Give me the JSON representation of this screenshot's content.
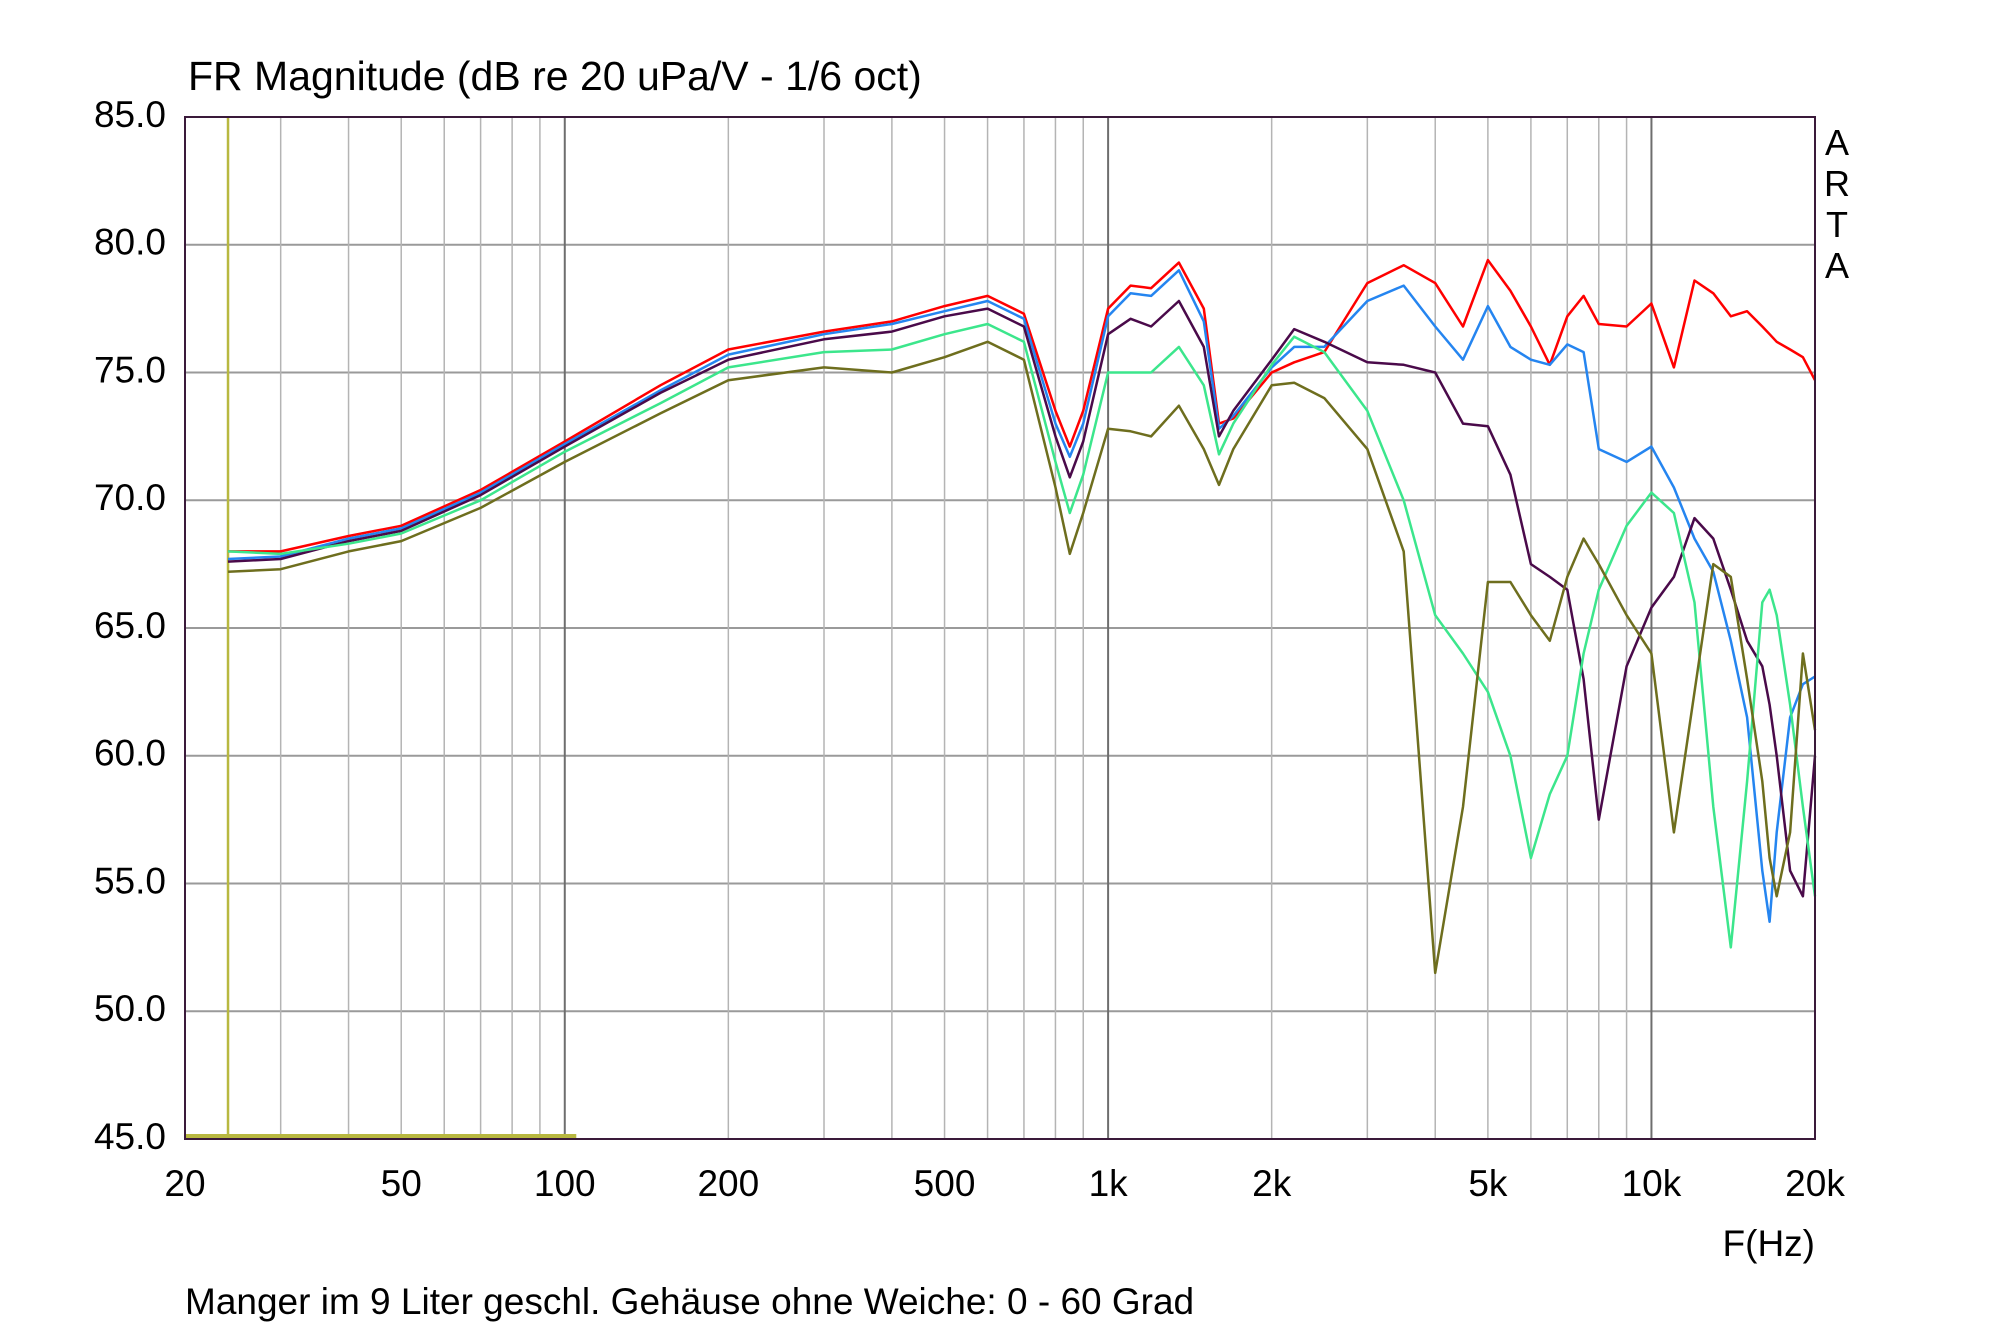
{
  "chart_data": {
    "type": "line",
    "title": "FR Magnitude (dB re 20 uPa/V - 1/6 oct)",
    "brand": "ARTA",
    "x_label": "F(Hz)",
    "caption": "Manger im 9 Liter geschl. Gehäuse ohne Weiche: 0 - 60 Grad",
    "xscale": "log",
    "grid": true,
    "xlim": [
      20,
      20000
    ],
    "ylim": [
      45,
      85
    ],
    "xticks": [
      20,
      50,
      100,
      200,
      500,
      {
        "value": 1000,
        "label": "1k"
      },
      {
        "value": 2000,
        "label": "2k"
      },
      {
        "value": 5000,
        "label": "5k"
      },
      {
        "value": 10000,
        "label": "10k"
      },
      {
        "value": 20000,
        "label": "20k"
      }
    ],
    "xminor": [
      30,
      40,
      60,
      70,
      80,
      90,
      300,
      400,
      600,
      700,
      800,
      900,
      3000,
      4000,
      6000,
      7000,
      8000,
      9000
    ],
    "yticks": [
      {
        "value": 45,
        "label": "45.0"
      },
      {
        "value": 50,
        "label": "50.0"
      },
      {
        "value": 55,
        "label": "55.0"
      },
      {
        "value": 60,
        "label": "60.0"
      },
      {
        "value": 65,
        "label": "65.0"
      },
      {
        "value": 70,
        "label": "70.0"
      },
      {
        "value": 75,
        "label": "75.0"
      },
      {
        "value": 80,
        "label": "80.0"
      },
      {
        "value": 85,
        "label": "85.0"
      }
    ],
    "cursor": {
      "x": 24,
      "span": [
        20,
        105
      ],
      "color": "#b8b840"
    },
    "x": [
      24,
      30,
      40,
      50,
      70,
      100,
      150,
      200,
      300,
      400,
      500,
      600,
      700,
      800,
      850,
      900,
      1000,
      1100,
      1200,
      1350,
      1500,
      1600,
      1700,
      2000,
      2200,
      2500,
      3000,
      3500,
      4000,
      4500,
      5000,
      5500,
      6000,
      6500,
      7000,
      7500,
      8000,
      9000,
      10000,
      11000,
      12000,
      13000,
      14000,
      15000,
      16000,
      16500,
      17000,
      18000,
      19000,
      20000
    ],
    "series": [
      {
        "color": "#ff0000",
        "values": [
          68.0,
          68.0,
          68.6,
          69.0,
          70.4,
          72.3,
          74.5,
          75.9,
          76.6,
          77.0,
          77.6,
          78.0,
          77.3,
          73.5,
          72.1,
          73.5,
          77.5,
          78.4,
          78.3,
          79.3,
          77.5,
          73.0,
          73.2,
          75.0,
          75.4,
          75.8,
          78.5,
          79.2,
          78.5,
          76.8,
          79.4,
          78.2,
          76.8,
          75.3,
          77.2,
          78.0,
          76.9,
          76.8,
          77.7,
          75.2,
          78.6,
          78.1,
          77.2,
          77.4,
          76.8,
          76.5,
          76.2,
          75.9,
          75.6,
          74.7
        ]
      },
      {
        "color": "#2585f0",
        "values": [
          67.7,
          67.8,
          68.5,
          68.9,
          70.3,
          72.2,
          74.3,
          75.7,
          76.5,
          76.9,
          77.4,
          77.8,
          77.1,
          73.0,
          71.7,
          73.0,
          77.2,
          78.1,
          78.0,
          79.0,
          77.0,
          72.8,
          73.3,
          75.2,
          76.0,
          76.0,
          77.8,
          78.4,
          76.8,
          75.5,
          77.6,
          76.0,
          75.5,
          75.3,
          76.1,
          75.8,
          72.0,
          71.5,
          72.1,
          70.5,
          68.5,
          67.2,
          64.5,
          61.5,
          55.5,
          53.5,
          57.0,
          61.5,
          62.8,
          63.1
        ]
      },
      {
        "color": "#4a0a4a",
        "values": [
          67.6,
          67.7,
          68.4,
          68.8,
          70.2,
          72.1,
          74.2,
          75.5,
          76.3,
          76.6,
          77.2,
          77.5,
          76.8,
          72.5,
          70.9,
          72.3,
          76.5,
          77.1,
          76.8,
          77.8,
          76.0,
          72.5,
          73.5,
          75.5,
          76.7,
          76.2,
          75.4,
          75.3,
          75.0,
          73.0,
          72.9,
          71.0,
          67.5,
          67.0,
          66.5,
          63.0,
          57.5,
          63.5,
          65.8,
          67.0,
          69.3,
          68.5,
          66.5,
          64.5,
          63.5,
          62.0,
          60.0,
          55.5,
          54.5,
          60.0
        ]
      },
      {
        "color": "#3ce68c",
        "values": [
          68.0,
          67.9,
          68.3,
          68.7,
          70.0,
          71.9,
          73.8,
          75.2,
          75.8,
          75.9,
          76.5,
          76.9,
          76.2,
          71.5,
          69.5,
          71.0,
          75.0,
          75.0,
          75.0,
          76.0,
          74.5,
          71.8,
          73.0,
          75.3,
          76.4,
          75.8,
          73.5,
          70.0,
          65.5,
          64.0,
          62.5,
          60.0,
          56.0,
          58.5,
          60.0,
          64.0,
          66.5,
          69.0,
          70.3,
          69.5,
          66.0,
          58.0,
          52.5,
          59.0,
          66.0,
          66.5,
          65.5,
          62.0,
          58.0,
          54.5
        ]
      },
      {
        "color": "#6e6e1e",
        "values": [
          67.2,
          67.3,
          68.0,
          68.4,
          69.7,
          71.5,
          73.4,
          74.7,
          75.2,
          75.0,
          75.6,
          76.2,
          75.5,
          70.5,
          67.9,
          69.5,
          72.8,
          72.7,
          72.5,
          73.7,
          72.0,
          70.6,
          72.0,
          74.5,
          74.6,
          74.0,
          72.0,
          68.0,
          51.5,
          58.0,
          66.8,
          66.8,
          65.5,
          64.5,
          67.0,
          68.5,
          67.5,
          65.5,
          64.0,
          57.0,
          62.5,
          67.5,
          67.0,
          63.0,
          59.0,
          56.0,
          54.5,
          57.0,
          64.0,
          61.0
        ]
      }
    ]
  }
}
